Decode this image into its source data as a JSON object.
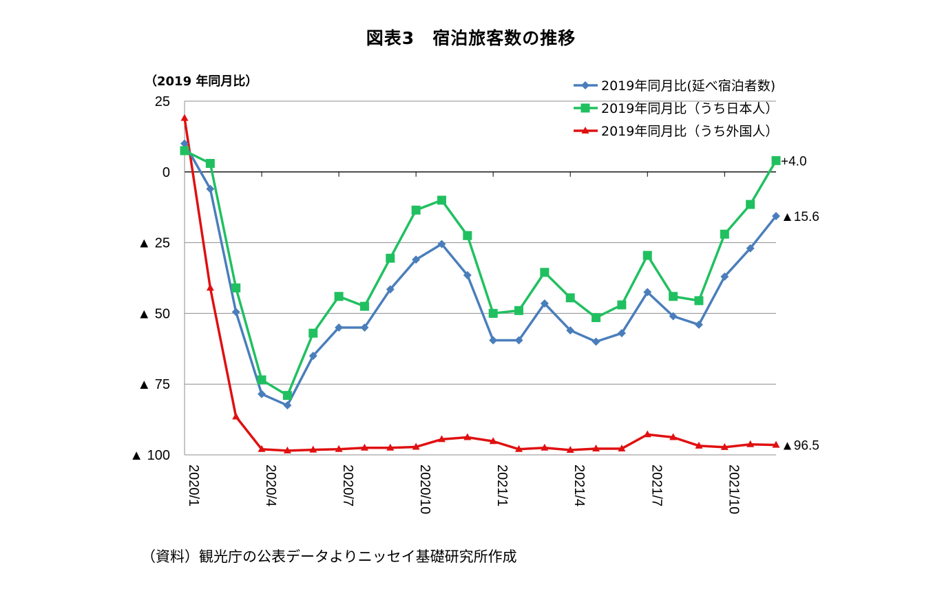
{
  "page": {
    "title": "図表3　宿泊旅客数の推移",
    "source": "（資料）観光庁の公表データよりニッセイ基礎研究所作成"
  },
  "chart_data": {
    "type": "line",
    "title": "図表3　宿泊旅客数の推移",
    "ylabel": "（2019 年同月比）",
    "xlabel": "",
    "ylim": [
      -100,
      25
    ],
    "yticks": [
      25,
      0,
      -25,
      -50,
      -75,
      -100
    ],
    "ytick_labels": [
      "25",
      "0",
      "▲ 25",
      "▲ 50",
      "▲ 75",
      "▲ 100"
    ],
    "categories": [
      "2020/1",
      "2020/2",
      "2020/3",
      "2020/4",
      "2020/5",
      "2020/6",
      "2020/7",
      "2020/8",
      "2020/9",
      "2020/10",
      "2020/11",
      "2020/12",
      "2021/1",
      "2021/2",
      "2021/3",
      "2021/4",
      "2021/5",
      "2021/6",
      "2021/7",
      "2021/8",
      "2021/9",
      "2021/10",
      "2021/11",
      "2021/12"
    ],
    "x_tick_labels": [
      "2020/1",
      "2020/4",
      "2020/7",
      "2020/10",
      "2021/1",
      "2021/4",
      "2021/7",
      "2021/10"
    ],
    "x_tick_indices": [
      0,
      3,
      6,
      9,
      12,
      15,
      18,
      21
    ],
    "grid": true,
    "legend_position": "top-right",
    "series": [
      {
        "name": "2019年同月比(延べ宿泊者数)",
        "color": "#4a7ebb",
        "marker": "diamond",
        "values": [
          10,
          -6,
          -49.5,
          -78.5,
          -82.5,
          -65,
          -55,
          -55,
          -41.5,
          -31,
          -25.5,
          -36.5,
          -59.5,
          -59.5,
          -46.5,
          -56,
          -60,
          -57,
          -42.5,
          -51,
          -54,
          -37,
          -27,
          -15.6
        ]
      },
      {
        "name": "2019年同月比（うち日本人）",
        "color": "#20c060",
        "marker": "square",
        "values": [
          7.5,
          3,
          -41,
          -73.5,
          -79,
          -57,
          -44,
          -47.5,
          -30.5,
          -13.5,
          -10,
          -22.5,
          -50,
          -49,
          -35.5,
          -44.5,
          -51.5,
          -47,
          -29.5,
          -44,
          -45.5,
          -22,
          -11.5,
          4.0
        ]
      },
      {
        "name": "2019年同月比（うち外国人）",
        "color": "#e01010",
        "marker": "triangle",
        "values": [
          19,
          -41,
          -86.5,
          -98,
          -98.5,
          -98.2,
          -98,
          -97.5,
          -97.5,
          -97.2,
          -94.5,
          -93.8,
          -95.2,
          -98,
          -97.5,
          -98.3,
          -97.8,
          -97.8,
          -92.8,
          -93.8,
          -96.8,
          -97.3,
          -96.3,
          -96.5
        ]
      }
    ],
    "end_labels": [
      {
        "series": 1,
        "text": "+4.0",
        "value": 4.0
      },
      {
        "series": 0,
        "text": "▲15.6",
        "value": -15.6
      },
      {
        "series": 2,
        "text": "▲96.5",
        "value": -96.5
      }
    ]
  }
}
